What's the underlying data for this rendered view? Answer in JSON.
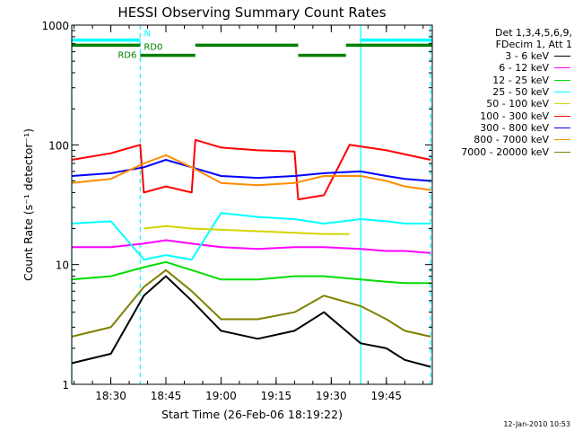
{
  "chart_data": {
    "type": "line",
    "title": "HESSI Observing Summary Count Rates",
    "xlabel": "Start Time (26-Feb-06 18:19:22)",
    "ylabel": "Count Rate (s⁻¹ detector⁻¹)",
    "x_range": [
      "18:19:22",
      "19:57:30"
    ],
    "yscale": "log",
    "ylim": [
      1,
      1000
    ],
    "x_ticks": [
      "18:30",
      "18:45",
      "19:00",
      "19:15",
      "19:30",
      "19:45"
    ],
    "y_ticks": [
      "1",
      "10",
      "100",
      "1000"
    ],
    "legend_position": "right",
    "legend_header": [
      "Det 1,3,4,5,6,9,",
      "FDecim 1, Att 1"
    ],
    "series": [
      {
        "name": "3 - 6 keV",
        "color": "#000000",
        "x": [
          "18:19:22",
          "18:30",
          "18:39",
          "18:45",
          "18:52",
          "19:00",
          "19:10",
          "19:20",
          "19:28",
          "19:38",
          "19:45",
          "19:50",
          "19:57"
        ],
        "values": [
          1.5,
          1.8,
          5.5,
          8.0,
          5.0,
          2.8,
          2.4,
          2.8,
          4.0,
          2.2,
          2.0,
          1.6,
          1.4
        ]
      },
      {
        "name": "6 - 12 keV",
        "color": "#ff00ff",
        "x": [
          "18:19:22",
          "18:30",
          "18:39",
          "18:45",
          "18:52",
          "19:00",
          "19:10",
          "19:20",
          "19:28",
          "19:38",
          "19:45",
          "19:50",
          "19:57"
        ],
        "values": [
          14,
          14,
          15,
          16,
          15,
          14,
          13.5,
          14,
          14,
          13.5,
          13,
          13,
          12.5
        ]
      },
      {
        "name": "12 - 25 keV",
        "color": "#00dd00",
        "x": [
          "18:19:22",
          "18:30",
          "18:39",
          "18:45",
          "18:52",
          "19:00",
          "19:10",
          "19:20",
          "19:28",
          "19:38",
          "19:45",
          "19:50",
          "19:57"
        ],
        "values": [
          7.5,
          8.0,
          9.5,
          10.5,
          9.0,
          7.5,
          7.5,
          8.0,
          8.0,
          7.5,
          7.2,
          7.0,
          7.0
        ]
      },
      {
        "name": "25 - 50 keV",
        "color": "#00ffff",
        "x": [
          "18:19:22",
          "18:30",
          "18:39",
          "18:45",
          "18:52",
          "19:00",
          "19:10",
          "19:20",
          "19:28",
          "19:38",
          "19:45",
          "19:50",
          "19:57"
        ],
        "values": [
          22,
          23,
          11,
          12,
          11,
          27,
          25,
          24,
          22,
          24,
          23,
          22,
          22
        ]
      },
      {
        "name": "50 - 100 keV",
        "color": "#d4d400",
        "x": [
          "18:39",
          "18:45",
          "18:52",
          "19:28",
          "19:35"
        ],
        "values": [
          20,
          21,
          20,
          18,
          18
        ]
      },
      {
        "name": "100 - 300 keV",
        "color": "#ff0000",
        "x": [
          "18:19:22",
          "18:30",
          "18:38",
          "18:39",
          "18:45",
          "18:52",
          "18:53",
          "19:00",
          "19:10",
          "19:20",
          "19:21",
          "19:28",
          "19:35",
          "19:45",
          "19:57"
        ],
        "values": [
          75,
          85,
          100,
          40,
          45,
          40,
          110,
          95,
          90,
          88,
          35,
          38,
          100,
          90,
          75
        ]
      },
      {
        "name": "300 - 800 keV",
        "color": "#0000ff",
        "x": [
          "18:19:22",
          "18:30",
          "18:39",
          "18:45",
          "18:52",
          "19:00",
          "19:10",
          "19:20",
          "19:28",
          "19:38",
          "19:45",
          "19:50",
          "19:57"
        ],
        "values": [
          55,
          58,
          65,
          75,
          65,
          55,
          53,
          55,
          58,
          60,
          55,
          52,
          50
        ]
      },
      {
        "name": "800 - 7000 keV",
        "color": "#ff8c00",
        "x": [
          "18:19:22",
          "18:30",
          "18:39",
          "18:45",
          "18:52",
          "19:00",
          "19:10",
          "19:20",
          "19:28",
          "19:38",
          "19:45",
          "19:50",
          "19:57"
        ],
        "values": [
          48,
          52,
          70,
          82,
          65,
          48,
          46,
          48,
          55,
          55,
          50,
          45,
          42
        ]
      },
      {
        "name": "7000 - 20000 keV",
        "color": "#808000",
        "x": [
          "18:19:22",
          "18:30",
          "18:39",
          "18:45",
          "18:52",
          "19:00",
          "19:10",
          "19:20",
          "19:28",
          "19:38",
          "19:45",
          "19:50",
          "19:57"
        ],
        "values": [
          2.5,
          3.0,
          6.5,
          9.0,
          6.0,
          3.5,
          3.5,
          4.0,
          5.5,
          4.5,
          3.5,
          2.8,
          2.5
        ]
      }
    ],
    "annotations": [
      {
        "label": "N",
        "color": "#00ffff",
        "value": 750,
        "spans": [
          [
            "18:19:22",
            "18:38"
          ],
          [
            "19:38",
            "19:57:30"
          ]
        ]
      },
      {
        "label": "RD0",
        "color": "#008000",
        "value": 680,
        "spans": [
          [
            "18:19:22",
            "18:38"
          ],
          [
            "18:53",
            "19:21"
          ],
          [
            "19:34",
            "19:57:30"
          ]
        ]
      },
      {
        "label": "RD6",
        "color": "#008000",
        "value": 560,
        "spans": [
          [
            "18:38",
            "18:53"
          ],
          [
            "19:21",
            "19:34"
          ]
        ]
      }
    ],
    "vertical_markers": [
      {
        "time": "18:19:22",
        "color": "#00ffff",
        "style": "solid"
      },
      {
        "time": "18:38",
        "color": "#00ffff",
        "style": "dashed"
      },
      {
        "time": "19:38",
        "color": "#00ffff",
        "style": "solid"
      },
      {
        "time": "19:57",
        "color": "#00ffff",
        "style": "dashed"
      }
    ]
  },
  "footer_date": "12-Jan-2010 10:53"
}
